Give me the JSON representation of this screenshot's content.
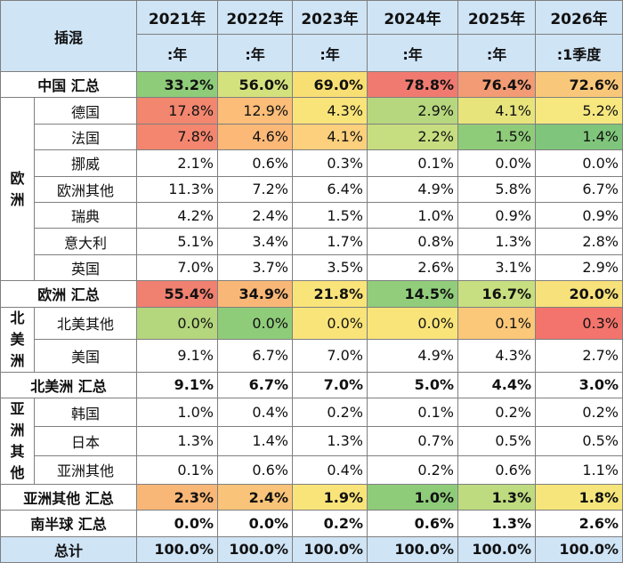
{
  "chart_data": {
    "type": "table",
    "corner_label": "插混",
    "years": [
      "2021年",
      "2022年",
      "2023年",
      "2024年",
      "2025年",
      "2026年"
    ],
    "periods": [
      ":年",
      ":年",
      ":年",
      ":年",
      ":年",
      ":1季度"
    ],
    "rows": [
      {
        "kind": "total",
        "label": "中国 汇总",
        "values": [
          "33.2%",
          "56.0%",
          "69.0%",
          "78.8%",
          "76.4%",
          "72.6%"
        ],
        "colors": [
          "#8fcc7a",
          "#d4e27e",
          "#f8df73",
          "#f07a70",
          "#f29b74",
          "#f9c77a"
        ]
      },
      {
        "kind": "region",
        "label": "欧洲",
        "span": 7
      },
      {
        "kind": "country",
        "label": "德国",
        "values": [
          "17.8%",
          "12.9%",
          "4.3%",
          "2.9%",
          "4.1%",
          "5.2%"
        ],
        "colors": [
          "#f2866f",
          "#fbbd78",
          "#f9e47a",
          "#b6d77d",
          "#e6e47b",
          "#f6e77f"
        ]
      },
      {
        "kind": "country",
        "label": "法国",
        "values": [
          "7.8%",
          "4.6%",
          "4.1%",
          "2.2%",
          "1.5%",
          "1.4%"
        ],
        "colors": [
          "#f4866f",
          "#fbb877",
          "#fcd07c",
          "#c7de80",
          "#8fcc7a",
          "#7fc57b"
        ]
      },
      {
        "kind": "country",
        "label": "挪威",
        "values": [
          "2.1%",
          "0.6%",
          "0.3%",
          "0.1%",
          "0.0%",
          "0.0%"
        ],
        "colors": [
          "",
          "",
          "",
          "",
          "",
          ""
        ]
      },
      {
        "kind": "country",
        "label": "欧洲其他",
        "values": [
          "11.3%",
          "7.2%",
          "6.4%",
          "4.9%",
          "5.8%",
          "6.7%"
        ],
        "colors": [
          "",
          "",
          "",
          "",
          "",
          ""
        ]
      },
      {
        "kind": "country",
        "label": "瑞典",
        "values": [
          "4.2%",
          "2.4%",
          "1.5%",
          "1.0%",
          "0.9%",
          "0.9%"
        ],
        "colors": [
          "",
          "",
          "",
          "",
          "",
          ""
        ]
      },
      {
        "kind": "country",
        "label": "意大利",
        "values": [
          "5.1%",
          "3.4%",
          "1.7%",
          "0.8%",
          "1.3%",
          "2.8%"
        ],
        "colors": [
          "",
          "",
          "",
          "",
          "",
          ""
        ]
      },
      {
        "kind": "country",
        "label": "英国",
        "values": [
          "7.0%",
          "3.7%",
          "3.5%",
          "2.6%",
          "3.1%",
          "2.9%"
        ],
        "colors": [
          "",
          "",
          "",
          "",
          "",
          ""
        ]
      },
      {
        "kind": "total",
        "label": "欧洲 汇总",
        "values": [
          "55.4%",
          "34.9%",
          "21.8%",
          "14.5%",
          "16.7%",
          "20.0%"
        ],
        "colors": [
          "#f08070",
          "#f9b777",
          "#f9e47a",
          "#91cd7b",
          "#c7df80",
          "#f7e17b"
        ]
      },
      {
        "kind": "region",
        "label": "北美洲",
        "span": 2
      },
      {
        "kind": "country",
        "label": "北美其他",
        "values": [
          "0.0%",
          "0.0%",
          "0.0%",
          "0.0%",
          "0.1%",
          "0.3%"
        ],
        "colors": [
          "#b4d67d",
          "#8fcc7a",
          "#f9e47a",
          "#f9e47a",
          "#fbc879",
          "#f2746c"
        ]
      },
      {
        "kind": "country",
        "label": "美国",
        "values": [
          "9.1%",
          "6.7%",
          "7.0%",
          "4.9%",
          "4.3%",
          "2.7%"
        ],
        "colors": [
          "",
          "",
          "",
          "",
          "",
          ""
        ]
      },
      {
        "kind": "total",
        "label": "北美洲 汇总",
        "values": [
          "9.1%",
          "6.7%",
          "7.0%",
          "5.0%",
          "4.4%",
          "3.0%"
        ],
        "colors": [
          "",
          "",
          "",
          "",
          "",
          ""
        ]
      },
      {
        "kind": "region",
        "label": "亚洲其他",
        "span": 3
      },
      {
        "kind": "country",
        "label": "韩国",
        "values": [
          "1.0%",
          "0.4%",
          "0.2%",
          "0.1%",
          "0.2%",
          "0.2%"
        ],
        "colors": [
          "",
          "",
          "",
          "",
          "",
          ""
        ]
      },
      {
        "kind": "country",
        "label": "日本",
        "values": [
          "1.3%",
          "1.4%",
          "1.3%",
          "0.7%",
          "0.5%",
          "0.5%"
        ],
        "colors": [
          "",
          "",
          "",
          "",
          "",
          ""
        ]
      },
      {
        "kind": "country",
        "label": "亚洲其他",
        "values": [
          "0.1%",
          "0.6%",
          "0.4%",
          "0.2%",
          "0.6%",
          "1.1%"
        ],
        "colors": [
          "",
          "",
          "",
          "",
          "",
          ""
        ]
      },
      {
        "kind": "total",
        "label": "亚洲其他 汇总",
        "values": [
          "2.3%",
          "2.4%",
          "1.9%",
          "1.0%",
          "1.3%",
          "1.8%"
        ],
        "colors": [
          "#f9b777",
          "#f9c479",
          "#f9e47a",
          "#8fcc7a",
          "#bedb7f",
          "#f5e57b"
        ]
      },
      {
        "kind": "total",
        "label": "南半球 汇总",
        "values": [
          "0.0%",
          "0.0%",
          "0.2%",
          "0.6%",
          "1.3%",
          "2.6%"
        ],
        "colors": [
          "",
          "",
          "",
          "",
          "",
          ""
        ]
      },
      {
        "kind": "final",
        "label": "总计",
        "values": [
          "100.0%",
          "100.0%",
          "100.0%",
          "100.0%",
          "100.0%",
          "100.0%"
        ],
        "colors": [
          "",
          "",
          "",
          "",
          "",
          ""
        ]
      }
    ]
  }
}
